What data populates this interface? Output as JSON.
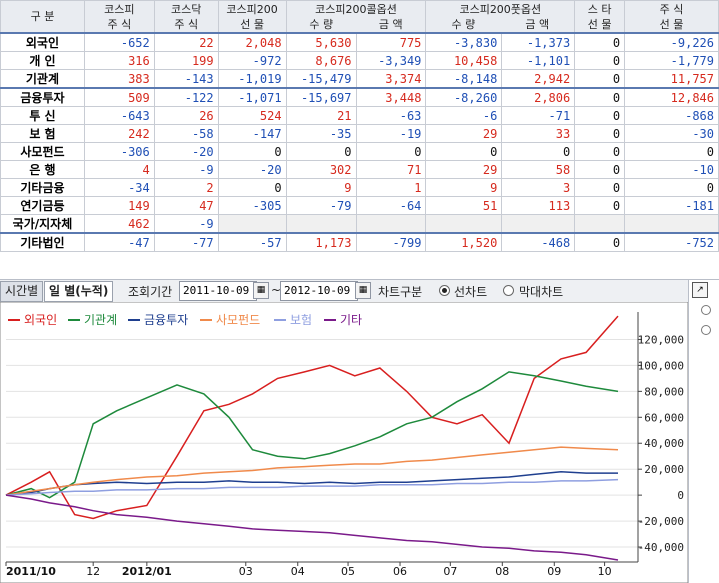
{
  "table": {
    "header_groups": [
      {
        "label": "구  분",
        "sub": ""
      },
      {
        "label": "코스피",
        "sub": "주  식"
      },
      {
        "label": "코스닥",
        "sub": "주  식"
      },
      {
        "label": "코스피200",
        "sub": "선  물"
      },
      {
        "label": "코스피200콜옵션",
        "sub": ""
      },
      {
        "label": "코스피200풋옵션",
        "sub": ""
      },
      {
        "label": "스  타",
        "sub": "선  물"
      },
      {
        "label": "주  식",
        "sub": "선  물"
      }
    ],
    "option_sub": {
      "qty": "수  량",
      "amt": "금  액"
    },
    "rows": [
      {
        "name": "외국인",
        "values": [
          "-652",
          "22",
          "2,048",
          "5,630",
          "775",
          "-3,830",
          "-1,373",
          "0",
          "-9,226"
        ]
      },
      {
        "name": "개  인",
        "values": [
          "316",
          "199",
          "-972",
          "8,676",
          "-3,349",
          "10,458",
          "-1,101",
          "0",
          "-1,779"
        ]
      },
      {
        "name": "기관계",
        "values": [
          "383",
          "-143",
          "-1,019",
          "-15,479",
          "3,374",
          "-8,148",
          "2,942",
          "0",
          "11,757"
        ]
      },
      {
        "name": "금융투자",
        "values": [
          "509",
          "-122",
          "-1,071",
          "-15,697",
          "3,448",
          "-8,260",
          "2,806",
          "0",
          "12,846"
        ]
      },
      {
        "name": "투  신",
        "values": [
          "-643",
          "26",
          "524",
          "21",
          "-63",
          "-6",
          "-71",
          "0",
          "-868"
        ]
      },
      {
        "name": "보  험",
        "values": [
          "242",
          "-58",
          "-147",
          "-35",
          "-19",
          "29",
          "33",
          "0",
          "-30"
        ]
      },
      {
        "name": "사모펀드",
        "values": [
          "-306",
          "-20",
          "0",
          "0",
          "0",
          "0",
          "0",
          "0",
          "0"
        ]
      },
      {
        "name": "은  행",
        "values": [
          "4",
          "-9",
          "-20",
          "302",
          "71",
          "29",
          "58",
          "0",
          "-10"
        ]
      },
      {
        "name": "기타금융",
        "values": [
          "-34",
          "2",
          "0",
          "9",
          "1",
          "9",
          "3",
          "0",
          "0"
        ]
      },
      {
        "name": "연기금등",
        "values": [
          "149",
          "47",
          "-305",
          "-79",
          "-64",
          "51",
          "113",
          "0",
          "-181"
        ]
      },
      {
        "name": "국가/지자체",
        "values": [
          "462",
          "-9",
          "",
          "",
          "",
          "",
          "",
          "",
          ""
        ]
      },
      {
        "name": "기타법인",
        "values": [
          "-47",
          "-77",
          "-57",
          "1,173",
          "-799",
          "1,520",
          "-468",
          "0",
          "-752"
        ]
      }
    ]
  },
  "controls": {
    "tab_time": "시간별",
    "tab_day": "일 별(누적)",
    "period_label": "조회기간",
    "date_from": "2011-10-09",
    "tilde": "~",
    "date_to": "2012-10-09",
    "chart_type_label": "차트구분",
    "line_chart": "선차트",
    "bar_chart": "막대차트",
    "calendar_icon": "calendar-icon"
  },
  "colors": {
    "positive": "#d62a1e",
    "negative": "#1f4fb5",
    "foreign": "#d81f1f",
    "institution": "#1e8a3c",
    "finance": "#1f3f8f",
    "private_fund": "#f08a4b",
    "insurance": "#8f9fe0",
    "other": "#7a1a8a"
  },
  "chart_data": {
    "type": "line",
    "x_ticks": [
      "2011/10",
      "12",
      "2012/01",
      "03",
      "04",
      "05",
      "06",
      "07",
      "08",
      "09",
      "10"
    ],
    "y_ticks": [
      "120,000",
      "100,000",
      "80,000",
      "60,000",
      "40,000",
      "20,000",
      "0",
      "-20,000",
      "-40,000"
    ],
    "ylim": [
      -50000,
      135000
    ],
    "x": [
      "2011-10-10",
      "2011-10-25",
      "2011-11-05",
      "2011-11-20",
      "2011-12-01",
      "2011-12-15",
      "2012-01-02",
      "2012-01-20",
      "2012-02-05",
      "2012-02-20",
      "2012-03-05",
      "2012-03-20",
      "2012-04-05",
      "2012-04-20",
      "2012-05-05",
      "2012-05-20",
      "2012-06-05",
      "2012-06-20",
      "2012-07-05",
      "2012-07-20",
      "2012-08-05",
      "2012-08-20",
      "2012-09-05",
      "2012-09-20",
      "2012-10-09"
    ],
    "series": [
      {
        "name": "외국인",
        "color": "#d81f1f",
        "values": [
          0,
          10000,
          18000,
          -15000,
          -18000,
          -12000,
          -8000,
          30000,
          65000,
          70000,
          78000,
          90000,
          95000,
          100000,
          92000,
          98000,
          80000,
          60000,
          55000,
          62000,
          40000,
          90000,
          105000,
          110000,
          138000
        ]
      },
      {
        "name": "기관계",
        "color": "#1e8a3c",
        "values": [
          0,
          5000,
          -2000,
          10000,
          55000,
          65000,
          75000,
          85000,
          78000,
          60000,
          35000,
          30000,
          28000,
          32000,
          38000,
          45000,
          55000,
          60000,
          72000,
          82000,
          95000,
          92000,
          88000,
          84000,
          80000
        ]
      },
      {
        "name": "금융투자",
        "color": "#1f3f8f",
        "values": [
          0,
          2000,
          5000,
          8000,
          9000,
          10000,
          9000,
          10000,
          10000,
          11000,
          10000,
          10000,
          9000,
          10000,
          9000,
          10000,
          10000,
          11000,
          12000,
          13000,
          14000,
          16000,
          18000,
          17000,
          17000
        ]
      },
      {
        "name": "사모펀드",
        "color": "#f08a4b",
        "values": [
          0,
          3000,
          5000,
          8000,
          10000,
          12000,
          14000,
          15000,
          17000,
          18000,
          19000,
          21000,
          22000,
          23000,
          24000,
          24000,
          26000,
          27000,
          29000,
          31000,
          33000,
          35000,
          37000,
          36000,
          35000
        ]
      },
      {
        "name": "보험",
        "color": "#8f9fe0",
        "values": [
          0,
          1000,
          2000,
          3000,
          3000,
          4000,
          4000,
          5000,
          5000,
          6000,
          6000,
          6000,
          7000,
          7000,
          7000,
          8000,
          8000,
          8000,
          9000,
          9000,
          10000,
          10000,
          11000,
          11000,
          12000
        ]
      },
      {
        "name": "기타",
        "color": "#7a1a8a",
        "values": [
          0,
          -3000,
          -6000,
          -9000,
          -12000,
          -15000,
          -17000,
          -20000,
          -22000,
          -24000,
          -26000,
          -27000,
          -28000,
          -29000,
          -31000,
          -33000,
          -35000,
          -36000,
          -38000,
          -40000,
          -41000,
          -43000,
          -44000,
          -46000,
          -50000
        ]
      }
    ]
  }
}
